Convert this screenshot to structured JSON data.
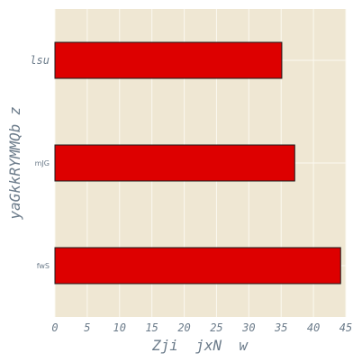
{
  "chart_data": {
    "type": "bar",
    "orientation": "horizontal",
    "categories": [
      "fwS",
      "mJG",
      "lsu"
    ],
    "values": [
      44.2,
      37.1,
      35.1
    ],
    "xlabel": "Zji  jxN  w",
    "ylabel": "yaGkkRYMMQb z",
    "xlim": [
      0,
      45
    ],
    "xticks": [
      0,
      5,
      10,
      15,
      20,
      25,
      30,
      35,
      40,
      45
    ],
    "grid": true,
    "legend": "none"
  },
  "colors": {
    "bar": "#dd0000",
    "background": "#efe7d3",
    "grid": "#fbf8f0",
    "text": "#6b7b8a"
  }
}
